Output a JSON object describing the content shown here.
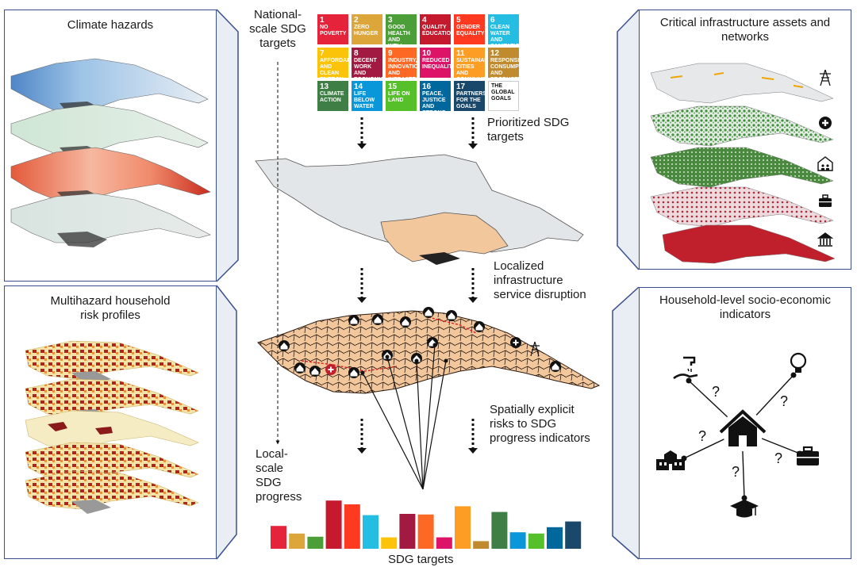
{
  "panels": {
    "climate_hazards": "Climate hazards",
    "multihazard": "Multihazard household\nrisk profiles",
    "infrastructure": "Critical infrastructure assets and\nnetworks",
    "socioeconomic": "Household-level socio-economic\nindicators"
  },
  "labels": {
    "national": "National-\nscale SDG\ntargets",
    "prioritized": "Prioritized SDG\ntargets",
    "localized": "Localized\ninfrastructure\nservice disruption",
    "spatial": "Spatially explicit\nrisks to SDG\nprogress indicators",
    "local": "Local-\nscale\nSDG\nprogress",
    "sdg_targets": "SDG targets"
  },
  "sdg_tiles": [
    {
      "n": "1",
      "label": "NO POVERTY",
      "color": "#e5243b"
    },
    {
      "n": "2",
      "label": "ZERO HUNGER",
      "color": "#dda63a"
    },
    {
      "n": "3",
      "label": "GOOD HEALTH AND WELL-BEING",
      "color": "#4c9f38"
    },
    {
      "n": "4",
      "label": "QUALITY EDUCATION",
      "color": "#c5192d"
    },
    {
      "n": "5",
      "label": "GENDER EQUALITY",
      "color": "#ff3a21"
    },
    {
      "n": "6",
      "label": "CLEAN WATER AND SANITATION",
      "color": "#26bde2"
    },
    {
      "n": "7",
      "label": "AFFORDABLE AND CLEAN ENERGY",
      "color": "#fcc30b"
    },
    {
      "n": "8",
      "label": "DECENT WORK AND ECONOMIC GROWTH",
      "color": "#a21942"
    },
    {
      "n": "9",
      "label": "INDUSTRY, INNOVATION AND INFRASTRUCTURE",
      "color": "#fd6925"
    },
    {
      "n": "10",
      "label": "REDUCED INEQUALITIES",
      "color": "#dd1367"
    },
    {
      "n": "11",
      "label": "SUSTAINABLE CITIES AND COMMUNITIES",
      "color": "#fd9d24"
    },
    {
      "n": "12",
      "label": "RESPONSIBLE CONSUMPTION AND PRODUCTION",
      "color": "#bf8b2e"
    },
    {
      "n": "13",
      "label": "CLIMATE ACTION",
      "color": "#3f7e44"
    },
    {
      "n": "14",
      "label": "LIFE BELOW WATER",
      "color": "#0a97d9"
    },
    {
      "n": "15",
      "label": "LIFE ON LAND",
      "color": "#56c02b"
    },
    {
      "n": "16",
      "label": "PEACE, JUSTICE AND STRONG INSTITUTIONS",
      "color": "#00689d"
    },
    {
      "n": "17",
      "label": "PARTNERSHIPS FOR THE GOALS",
      "color": "#19486a"
    },
    {
      "n": "",
      "label": "THE GLOBAL GOALS",
      "color": "#ffffff"
    }
  ],
  "bars": [
    {
      "color": "#e5243b",
      "value": 0.36
    },
    {
      "color": "#dda63a",
      "value": 0.24
    },
    {
      "color": "#4c9f38",
      "value": 0.19
    },
    {
      "color": "#c5192d",
      "value": 0.76
    },
    {
      "color": "#ff3a21",
      "value": 0.7
    },
    {
      "color": "#26bde2",
      "value": 0.53
    },
    {
      "color": "#fcc30b",
      "value": 0.18
    },
    {
      "color": "#a21942",
      "value": 0.55
    },
    {
      "color": "#fd6925",
      "value": 0.54
    },
    {
      "color": "#dd1367",
      "value": 0.18
    },
    {
      "color": "#fd9d24",
      "value": 0.67
    },
    {
      "color": "#bf8b2e",
      "value": 0.12
    },
    {
      "color": "#3f7e44",
      "value": 0.58
    },
    {
      "color": "#0a97d9",
      "value": 0.26
    },
    {
      "color": "#56c02b",
      "value": 0.24
    },
    {
      "color": "#00689d",
      "value": 0.34
    },
    {
      "color": "#19486a",
      "value": 0.43
    }
  ],
  "question_mark": "?",
  "colors": {
    "frame": "#3a4f8f",
    "land_grey": "#e3e6e8",
    "land_tan": "#f2c79c",
    "infra_green": "#3d8f3a",
    "infra_red": "#c0202c",
    "risk_red": "#8b1a1a"
  },
  "icons": [
    "power-pylon-icon",
    "hospital-icon",
    "school-icon",
    "briefcase-icon",
    "government-building-icon",
    "house-icon",
    "hand-wash-icon",
    "lightbulb-icon",
    "graduation-cap-icon"
  ]
}
